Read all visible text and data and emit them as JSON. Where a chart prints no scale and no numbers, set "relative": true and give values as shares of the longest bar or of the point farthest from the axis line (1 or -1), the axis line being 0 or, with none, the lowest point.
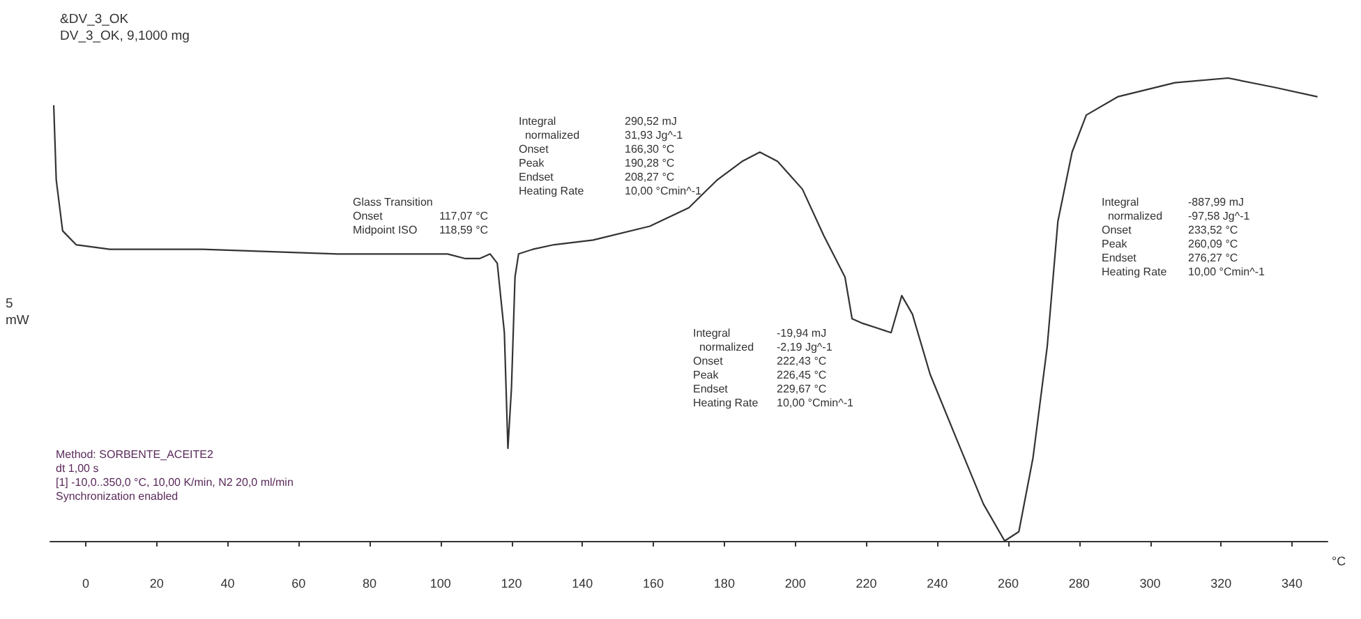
{
  "chart_data": {
    "type": "line",
    "title": "&DV_3_OK",
    "subtitle": "DV_3_OK, 9,1000 mg",
    "xlabel": "°C",
    "ylabel": "5 mW",
    "relative": true,
    "marker": "none",
    "line_style": "solid",
    "grid": false,
    "xlim": [
      -10,
      350
    ],
    "xticks": [
      0,
      20,
      40,
      60,
      80,
      100,
      120,
      140,
      160,
      180,
      200,
      220,
      240,
      260,
      280,
      300,
      320,
      340
    ],
    "series": [
      {
        "color": "#333333",
        "x": [
          -9,
          -8.3,
          -6.5,
          -2.7,
          6.8,
          33,
          71,
          90,
          102,
          107,
          111,
          114,
          116,
          118,
          119,
          120,
          121,
          122,
          126,
          132,
          143,
          159,
          170,
          178,
          185,
          190,
          195,
          202,
          208,
          214,
          216,
          219,
          223,
          227,
          230,
          233,
          238,
          246,
          253,
          259,
          263,
          267,
          271,
          274,
          278,
          282,
          291,
          307,
          322,
          335,
          347
        ],
        "values": [
          0.94,
          0.78,
          0.67,
          0.64,
          0.63,
          0.63,
          0.62,
          0.62,
          0.62,
          0.61,
          0.61,
          0.62,
          0.6,
          0.45,
          0.2,
          0.33,
          0.57,
          0.62,
          0.63,
          0.64,
          0.65,
          0.68,
          0.72,
          0.78,
          0.82,
          0.84,
          0.82,
          0.76,
          0.66,
          0.57,
          0.48,
          0.47,
          0.46,
          0.45,
          0.53,
          0.49,
          0.36,
          0.21,
          0.08,
          0,
          0.02,
          0.18,
          0.42,
          0.69,
          0.84,
          0.92,
          0.96,
          0.99,
          1,
          0.98,
          0.96
        ]
      }
    ],
    "annotations": [
      "Glass Transition\nOnset\t117,07 °C\nMidpoint ISO\t118,59 °C",
      "Integral\t290,52 mJ\n  normalized\t31,93 Jg^-1\nOnset\t166,30 °C\nPeak\t190,28 °C\nEndset\t208,27 °C\nHeating Rate\t10,00 °Cmin^-1",
      "Integral\t-19,94 mJ\n  normalized\t-2,19 Jg^-1\nOnset\t222,43 °C\nPeak\t226,45 °C\nEndset\t229,67 °C\nHeating Rate\t10,00 °Cmin^-1",
      "Integral\t-887,99 mJ\n  normalized\t-97,58 Jg^-1\nOnset\t233,52 °C\nPeak\t260,09 °C\nEndset\t276,27 °C\nHeating Rate\t10,00 °Cmin^-1",
      "Method: SORBENTE_ACEITE2\ndt 1,00 s\n[1] -10,0..350,0 °C, 10,00 K/min, N2 20,0 ml/min\nSynchronization enabled"
    ]
  }
}
